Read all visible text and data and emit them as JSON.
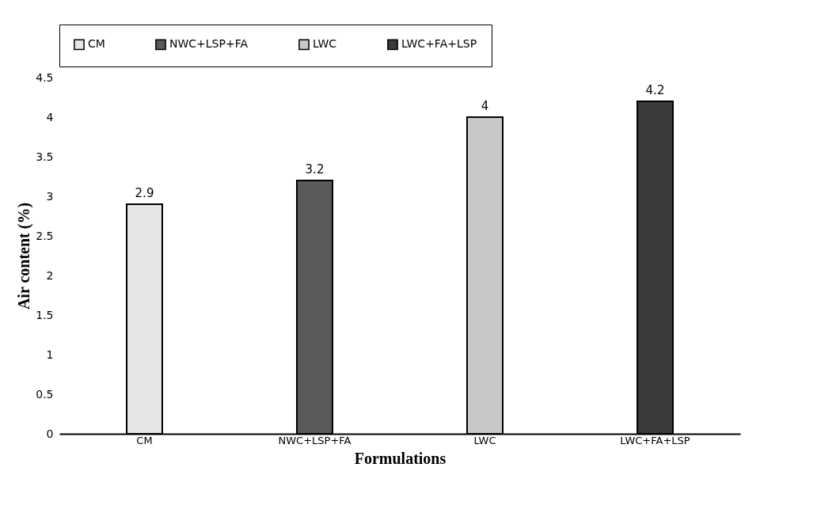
{
  "chart_data": {
    "type": "bar",
    "xlabel": "Formulations",
    "ylabel": "Air content (%)",
    "categories": [
      "CM",
      "NWC+LSP+FA",
      "LWC",
      "LWC+FA+LSP"
    ],
    "series": [
      {
        "name": "CM",
        "color": "#e6e6e6",
        "values": [
          2.9,
          null,
          null,
          null
        ]
      },
      {
        "name": "NWC+LSP+FA",
        "color": "#5a5a5a",
        "values": [
          null,
          3.2,
          null,
          null
        ]
      },
      {
        "name": "LWC",
        "color": "#c8c8c8",
        "values": [
          null,
          null,
          4,
          null
        ]
      },
      {
        "name": "LWC+FA+LSP",
        "color": "#3a3a3a",
        "values": [
          null,
          null,
          null,
          4.2
        ]
      }
    ],
    "ylim": [
      0,
      4.5
    ],
    "yticks": [
      0,
      0.5,
      1,
      1.5,
      2,
      2.5,
      3,
      3.5,
      4,
      4.5
    ],
    "data_labels": true,
    "legend": "top",
    "grid": false
  }
}
